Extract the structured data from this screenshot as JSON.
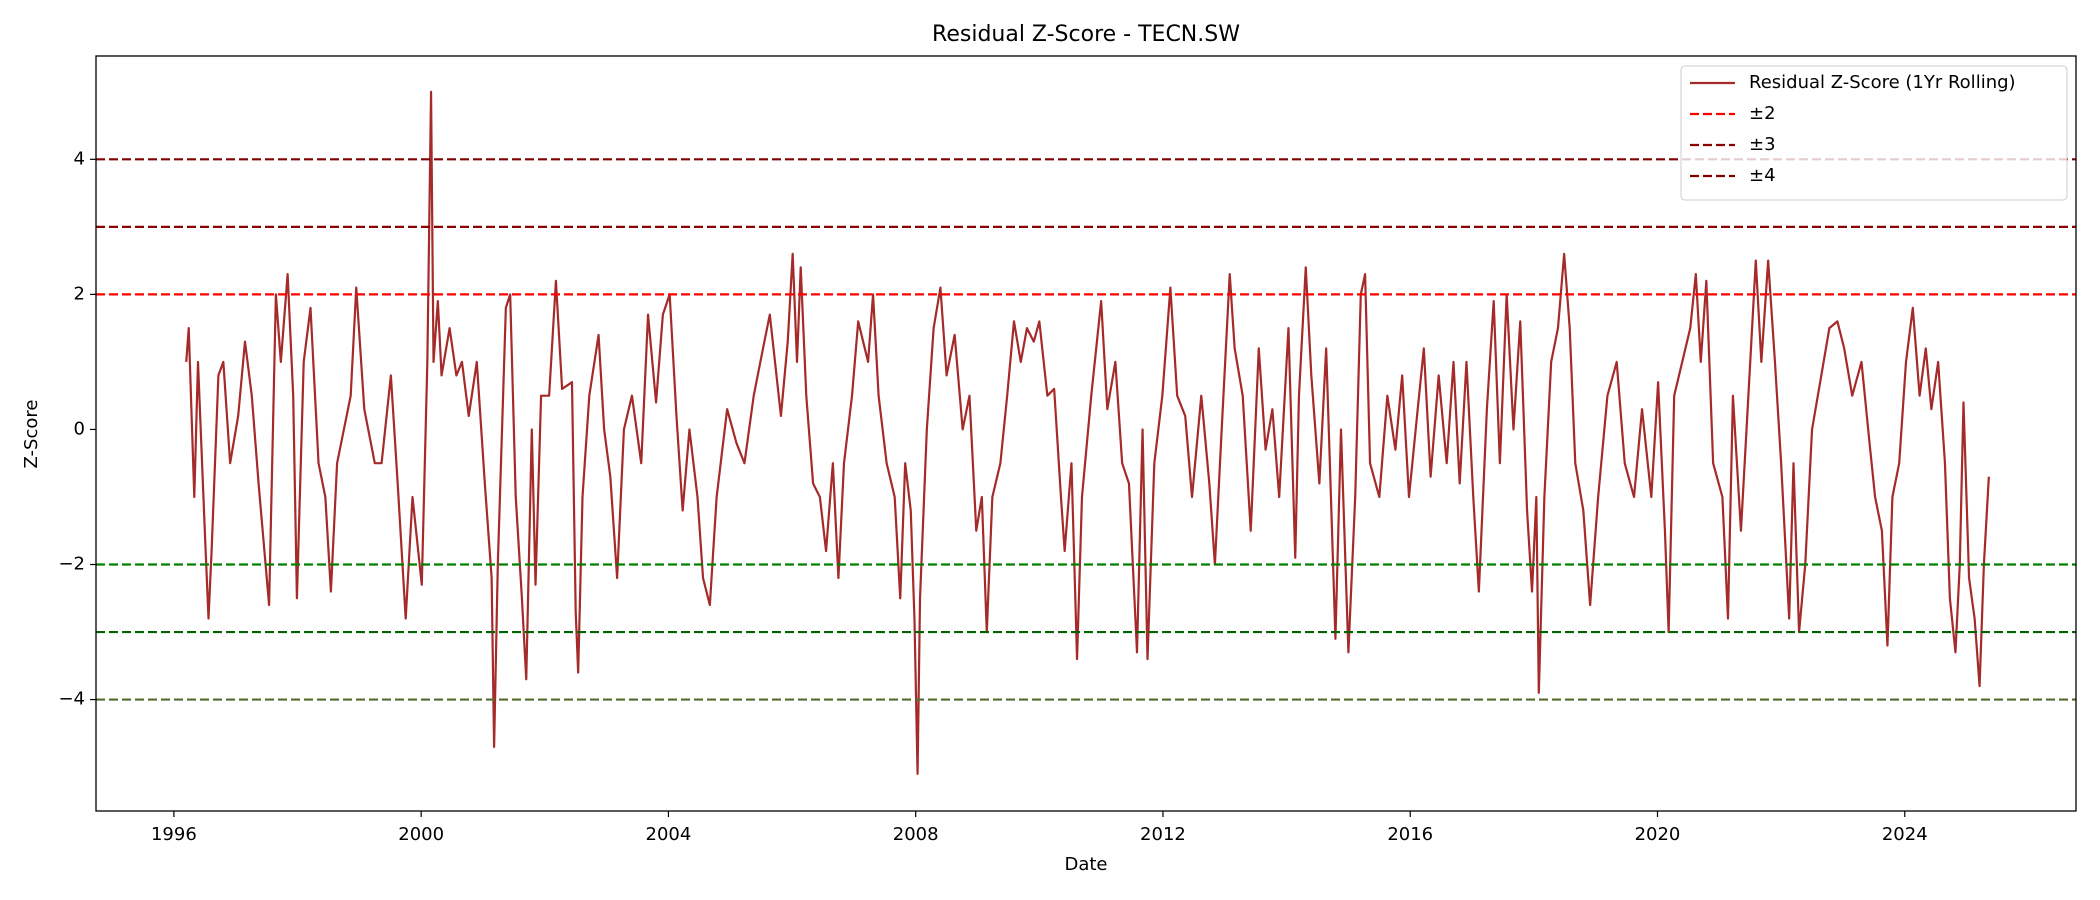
{
  "chart_data": {
    "type": "line",
    "title": "Residual Z-Score - TECN.SW",
    "x_label": "Date",
    "y_label": "Z-Score",
    "xlim": [
      1994.74,
      2026.77
    ],
    "xticks": [
      1996,
      2000,
      2004,
      2008,
      2012,
      2016,
      2020,
      2024
    ],
    "ylim": [
      -5.65,
      5.53
    ],
    "yticks": [
      {
        "value": -4,
        "label": "−4"
      },
      {
        "value": -2,
        "label": "−2"
      },
      0,
      2,
      4
    ],
    "grid": false,
    "legend": "upper right",
    "x": [
      1996.2,
      1996.24,
      1996.33,
      1996.39,
      1996.5,
      1996.56,
      1996.61,
      1996.72,
      1996.8,
      1996.91,
      1997.04,
      1997.15,
      1997.26,
      1997.37,
      1997.54,
      1997.65,
      1997.73,
      1997.84,
      1997.93,
      1997.99,
      1998.1,
      1998.21,
      1998.34,
      1998.45,
      1998.54,
      1998.64,
      1998.86,
      1998.95,
      1999.08,
      1999.25,
      1999.36,
      1999.51,
      1999.62,
      1999.75,
      1999.86,
      2000.01,
      2000.1,
      2000.16,
      2000.2,
      2000.27,
      2000.33,
      2000.46,
      2000.57,
      2000.66,
      2000.77,
      2000.9,
      2001.03,
      2001.14,
      2001.18,
      2001.24,
      2001.37,
      2001.44,
      2001.53,
      2001.63,
      2001.7,
      2001.79,
      2001.85,
      2001.94,
      2002.07,
      2002.18,
      2002.28,
      2002.44,
      2002.5,
      2002.54,
      2002.61,
      2002.72,
      2002.87,
      2002.96,
      2003.06,
      2003.17,
      2003.28,
      2003.41,
      2003.56,
      2003.67,
      2003.8,
      2003.91,
      2004.02,
      2004.13,
      2004.23,
      2004.34,
      2004.47,
      2004.56,
      2004.67,
      2004.78,
      2004.95,
      2005.1,
      2005.23,
      2005.38,
      2005.53,
      2005.64,
      2005.82,
      2005.93,
      2006.01,
      2006.08,
      2006.14,
      2006.23,
      2006.34,
      2006.45,
      2006.55,
      2006.66,
      2006.75,
      2006.84,
      2006.97,
      2007.07,
      2007.23,
      2007.31,
      2007.4,
      2007.53,
      2007.66,
      2007.75,
      2007.83,
      2007.92,
      2007.98,
      2008.03,
      2008.07,
      2008.18,
      2008.29,
      2008.4,
      2008.5,
      2008.63,
      2008.76,
      2008.87,
      2008.98,
      2009.07,
      2009.15,
      2009.24,
      2009.37,
      2009.48,
      2009.59,
      2009.7,
      2009.8,
      2009.91,
      2010.0,
      2010.13,
      2010.24,
      2010.35,
      2010.41,
      2010.52,
      2010.61,
      2010.69,
      2010.84,
      2011.0,
      2011.1,
      2011.23,
      2011.34,
      2011.45,
      2011.58,
      2011.67,
      2011.75,
      2011.86,
      2011.99,
      2012.12,
      2012.23,
      2012.36,
      2012.47,
      2012.62,
      2012.75,
      2012.84,
      2012.95,
      2013.08,
      2013.16,
      2013.29,
      2013.42,
      2013.55,
      2013.66,
      2013.77,
      2013.88,
      2014.03,
      2014.14,
      2014.2,
      2014.31,
      2014.4,
      2014.53,
      2014.64,
      2014.7,
      2014.79,
      2014.88,
      2015.0,
      2015.11,
      2015.2,
      2015.27,
      2015.35,
      2015.5,
      2015.63,
      2015.76,
      2015.87,
      2015.98,
      2016.11,
      2016.22,
      2016.33,
      2016.46,
      2016.59,
      2016.7,
      2016.8,
      2016.91,
      2017.02,
      2017.11,
      2017.24,
      2017.35,
      2017.45,
      2017.56,
      2017.67,
      2017.78,
      2017.89,
      2017.97,
      2018.04,
      2018.08,
      2018.17,
      2018.28,
      2018.39,
      2018.49,
      2018.58,
      2018.67,
      2018.8,
      2018.91,
      2019.04,
      2019.19,
      2019.34,
      2019.47,
      2019.62,
      2019.75,
      2019.9,
      2020.01,
      2020.12,
      2020.18,
      2020.27,
      2020.4,
      2020.53,
      2020.62,
      2020.7,
      2020.79,
      2020.9,
      2021.05,
      2021.14,
      2021.22,
      2021.35,
      2021.44,
      2021.59,
      2021.68,
      2021.79,
      2021.9,
      2022.0,
      2022.13,
      2022.2,
      2022.29,
      2022.39,
      2022.5,
      2022.65,
      2022.78,
      2022.91,
      2023.02,
      2023.15,
      2023.3,
      2023.43,
      2023.52,
      2023.63,
      2023.72,
      2023.8,
      2023.91,
      2024.02,
      2024.13,
      2024.24,
      2024.34,
      2024.43,
      2024.54,
      2024.65,
      2024.73,
      2024.82,
      2024.89,
      2024.95,
      2025.04,
      2025.13,
      2025.21,
      2025.28,
      2025.36
    ],
    "series": [
      {
        "name": "Residual Z-Score (1Yr Rolling)",
        "color": "#a52a2a",
        "values": [
          1.0,
          1.5,
          -1.0,
          1.0,
          -1.5,
          -2.8,
          -1.8,
          0.8,
          1.0,
          -0.5,
          0.2,
          1.3,
          0.5,
          -0.8,
          -2.6,
          2.0,
          1.0,
          2.3,
          0.5,
          -2.5,
          1.0,
          1.8,
          -0.5,
          -1.0,
          -2.4,
          -0.5,
          0.5,
          2.1,
          0.3,
          -0.5,
          -0.5,
          0.8,
          -0.8,
          -2.8,
          -1.0,
          -2.3,
          1.0,
          5.0,
          1.0,
          1.9,
          0.8,
          1.5,
          0.8,
          1.0,
          0.2,
          1.0,
          -0.8,
          -2.2,
          -4.7,
          -2.0,
          1.8,
          2.0,
          -1.0,
          -2.5,
          -3.7,
          0.0,
          -2.3,
          0.5,
          0.5,
          2.2,
          0.6,
          0.7,
          -2.7,
          -3.6,
          -1.0,
          0.5,
          1.4,
          0.0,
          -0.7,
          -2.2,
          0.0,
          0.5,
          -0.5,
          1.7,
          0.4,
          1.7,
          2.0,
          0.2,
          -1.2,
          0.0,
          -1.0,
          -2.2,
          -2.6,
          -1.0,
          0.3,
          -0.2,
          -0.5,
          0.5,
          1.2,
          1.7,
          0.2,
          1.3,
          2.6,
          1.0,
          2.4,
          0.5,
          -0.8,
          -1.0,
          -1.8,
          -0.5,
          -2.2,
          -0.5,
          0.5,
          1.6,
          1.0,
          2.0,
          0.5,
          -0.5,
          -1.0,
          -2.5,
          -0.5,
          -1.2,
          -2.8,
          -5.1,
          -2.5,
          0.0,
          1.5,
          2.1,
          0.8,
          1.4,
          0.0,
          0.5,
          -1.5,
          -1.0,
          -3.0,
          -1.0,
          -0.5,
          0.5,
          1.6,
          1.0,
          1.5,
          1.3,
          1.6,
          0.5,
          0.6,
          -1.0,
          -1.8,
          -0.5,
          -3.4,
          -1.0,
          0.5,
          1.9,
          0.3,
          1.0,
          -0.5,
          -0.8,
          -3.3,
          0.0,
          -3.4,
          -0.5,
          0.5,
          2.1,
          0.5,
          0.2,
          -1.0,
          0.5,
          -0.8,
          -2.0,
          0.0,
          2.3,
          1.2,
          0.5,
          -1.5,
          1.2,
          -0.3,
          0.3,
          -1.0,
          1.5,
          -1.9,
          0.5,
          2.4,
          0.8,
          -0.8,
          1.2,
          -0.5,
          -3.1,
          0.0,
          -3.3,
          -1.0,
          2.0,
          2.3,
          -0.5,
          -1.0,
          0.5,
          -0.3,
          0.8,
          -1.0,
          0.2,
          1.2,
          -0.7,
          0.8,
          -0.5,
          1.0,
          -0.8,
          1.0,
          -1.0,
          -2.4,
          0.3,
          1.9,
          -0.5,
          2.0,
          0.0,
          1.6,
          -1.2,
          -2.4,
          -1.0,
          -3.9,
          -1.0,
          1.0,
          1.5,
          2.6,
          1.5,
          -0.5,
          -1.2,
          -2.6,
          -1.0,
          0.5,
          1.0,
          -0.5,
          -1.0,
          0.3,
          -1.0,
          0.7,
          -1.5,
          -3.0,
          0.5,
          1.0,
          1.5,
          2.3,
          1.0,
          2.2,
          -0.5,
          -1.0,
          -2.8,
          0.5,
          -1.5,
          0.0,
          2.5,
          1.0,
          2.5,
          1.0,
          -0.5,
          -2.8,
          -0.5,
          -3.0,
          -2.0,
          0.0,
          0.8,
          1.5,
          1.6,
          1.2,
          0.5,
          1.0,
          -0.2,
          -1.0,
          -1.5,
          -3.2,
          -1.0,
          -0.5,
          1.0,
          1.8,
          0.5,
          1.2,
          0.3,
          1.0,
          -0.5,
          -2.5,
          -3.3,
          -2.0,
          0.4,
          -2.2,
          -2.8,
          -3.8,
          -2.0,
          -0.7
        ]
      }
    ],
    "reference_lines": [
      {
        "name": "±2",
        "values": [
          2,
          -2
        ],
        "colors": [
          "#ff0000",
          "#008000"
        ]
      },
      {
        "name": "±3",
        "values": [
          3,
          -3
        ],
        "colors": [
          "#8b0000",
          "#006400"
        ]
      },
      {
        "name": "±4",
        "values": [
          4,
          -4
        ],
        "colors": [
          "#800000",
          "#556b2f"
        ]
      }
    ]
  }
}
